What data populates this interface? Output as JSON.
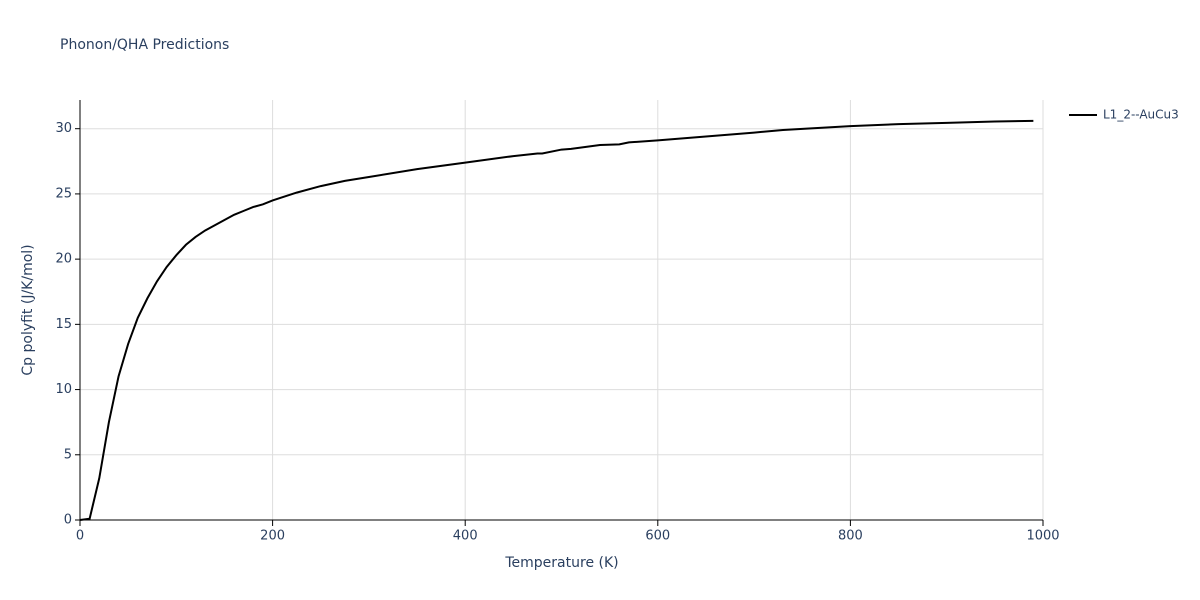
{
  "chart_data": {
    "type": "line",
    "title": "Phonon/QHA Predictions",
    "x_label": "Temperature (K)",
    "y_label": "Cp polyfit (J/K/mol)",
    "x": [
      0,
      10,
      20,
      30,
      40,
      50,
      60,
      70,
      80,
      90,
      100,
      110,
      120,
      130,
      140,
      150,
      160,
      170,
      180,
      190,
      200,
      225,
      250,
      275,
      300,
      350,
      400,
      450,
      475,
      480,
      500,
      510,
      540,
      560,
      570,
      600,
      650,
      700,
      730,
      800,
      850,
      900,
      950,
      990
    ],
    "series": [
      {
        "name": "L1_2--AuCu3",
        "color": "#000000",
        "values": [
          0,
          0.1,
          3.2,
          7.5,
          11,
          13.5,
          15.5,
          17,
          18.3,
          19.4,
          20.3,
          21.1,
          21.7,
          22.2,
          22.6,
          23,
          23.4,
          23.7,
          24,
          24.2,
          24.5,
          25.1,
          25.6,
          26,
          26.3,
          26.9,
          27.4,
          27.9,
          28.1,
          28.1,
          28.4,
          28.45,
          28.75,
          28.8,
          28.95,
          29.1,
          29.4,
          29.7,
          29.9,
          30.2,
          30.35,
          30.45,
          30.55,
          30.6
        ]
      }
    ],
    "xlim": [
      0,
      1000
    ],
    "xticks": [
      0,
      200,
      400,
      600,
      800,
      1000
    ],
    "ylim": [
      0,
      32.2
    ],
    "yticks": [
      0,
      5,
      10,
      15,
      20,
      25,
      30
    ],
    "grid": true,
    "legend": "right"
  }
}
